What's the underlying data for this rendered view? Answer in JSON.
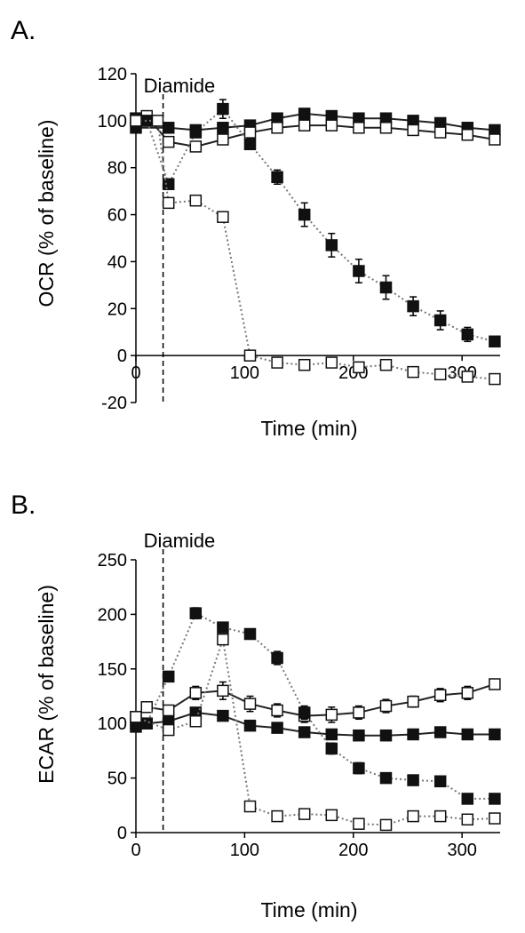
{
  "chart_data": [
    {
      "type": "line",
      "panel_label": "A.",
      "title": "",
      "xlabel": "Time (min)",
      "ylabel": "OCR (% of baseline)",
      "xlim": [
        0,
        335
      ],
      "ylim": [
        -20,
        120
      ],
      "x_ticks": [
        "0",
        "100",
        "200",
        "300"
      ],
      "x_tick_values": [
        0,
        100,
        200,
        300
      ],
      "y_ticks": [
        "-20",
        "0",
        "20",
        "40",
        "60",
        "80",
        "100",
        "120"
      ],
      "y_tick_values": [
        -20,
        0,
        20,
        40,
        60,
        80,
        100,
        120
      ],
      "annotation": {
        "text": "Diamide",
        "x": 25
      },
      "grid": false,
      "series": [
        {
          "marker": "filled",
          "line": "solid",
          "x": [
            0,
            30,
            55,
            80,
            105,
            130,
            155,
            180,
            205,
            230,
            255,
            280,
            305,
            330
          ],
          "y": [
            97,
            97,
            96,
            97,
            98,
            101,
            103,
            102,
            101,
            101,
            100,
            99,
            97,
            96
          ],
          "err": [
            0,
            0,
            0,
            0,
            0,
            0,
            0,
            0,
            0,
            0,
            0,
            0,
            0,
            0
          ]
        },
        {
          "marker": "open",
          "line": "solid",
          "x": [
            0,
            10,
            30,
            55,
            80,
            105,
            130,
            155,
            180,
            205,
            230,
            255,
            280,
            305,
            330
          ],
          "y": [
            101,
            102,
            91,
            89,
            92,
            95,
            97,
            98,
            98,
            97,
            97,
            96,
            95,
            94,
            92
          ],
          "err": [
            0,
            0,
            0,
            0,
            0,
            0,
            0,
            0,
            0,
            0,
            0,
            0,
            0,
            0,
            0
          ]
        },
        {
          "marker": "filled",
          "line": "dotted",
          "x": [
            0,
            10,
            30,
            55,
            80,
            105,
            130,
            155,
            180,
            205,
            230,
            255,
            280,
            305,
            330
          ],
          "y": [
            101,
            100,
            73,
            95,
            105,
            90,
            76,
            60,
            47,
            36,
            29,
            21,
            15,
            9,
            6
          ],
          "err": [
            0,
            0,
            2,
            2,
            4,
            2,
            3,
            5,
            5,
            5,
            5,
            4,
            4,
            3,
            2
          ]
        },
        {
          "marker": "open",
          "line": "dotted",
          "x": [
            0,
            20,
            30,
            55,
            80,
            105,
            130,
            155,
            180,
            205,
            230,
            255,
            280,
            305,
            330
          ],
          "y": [
            100,
            100,
            65,
            66,
            59,
            0,
            -3,
            -4,
            -3,
            -5,
            -4,
            -7,
            -8,
            -9,
            -10
          ],
          "err": [
            0,
            0,
            0,
            0,
            0,
            0,
            0,
            0,
            0,
            0,
            0,
            0,
            0,
            0,
            0
          ]
        }
      ]
    },
    {
      "type": "line",
      "panel_label": "B.",
      "title": "",
      "xlabel": "Time (min)",
      "ylabel": "ECAR (% of baseline)",
      "xlim": [
        0,
        335
      ],
      "ylim": [
        0,
        250
      ],
      "x_ticks": [
        "0",
        "100",
        "200",
        "300"
      ],
      "x_tick_values": [
        0,
        100,
        200,
        300
      ],
      "y_ticks": [
        "0",
        "50",
        "100",
        "150",
        "200",
        "250"
      ],
      "y_tick_values": [
        0,
        50,
        100,
        150,
        200,
        250
      ],
      "annotation": {
        "text": "Diamide",
        "x": 25
      },
      "grid": false,
      "series": [
        {
          "marker": "filled",
          "line": "solid",
          "x": [
            0,
            10,
            30,
            55,
            80,
            105,
            130,
            155,
            180,
            205,
            230,
            255,
            280,
            305,
            330
          ],
          "y": [
            97,
            100,
            102,
            110,
            107,
            98,
            96,
            92,
            90,
            89,
            89,
            90,
            92,
            90,
            90
          ],
          "err": [
            0,
            0,
            0,
            0,
            0,
            0,
            0,
            0,
            0,
            0,
            0,
            0,
            0,
            0,
            0
          ]
        },
        {
          "marker": "open",
          "line": "solid",
          "x": [
            0,
            10,
            30,
            55,
            80,
            105,
            130,
            155,
            180,
            205,
            230,
            255,
            280,
            305,
            330
          ],
          "y": [
            106,
            115,
            112,
            128,
            130,
            118,
            112,
            107,
            108,
            110,
            116,
            120,
            126,
            128,
            136
          ],
          "err": [
            0,
            0,
            0,
            6,
            8,
            7,
            6,
            6,
            7,
            6,
            6,
            5,
            6,
            6,
            4
          ]
        },
        {
          "marker": "filled",
          "line": "dotted",
          "x": [
            0,
            10,
            30,
            55,
            80,
            105,
            130,
            155,
            180,
            205,
            230,
            255,
            280,
            305,
            330
          ],
          "y": [
            100,
            100,
            143,
            201,
            188,
            182,
            160,
            110,
            77,
            59,
            50,
            48,
            47,
            31,
            31
          ],
          "err": [
            0,
            0,
            0,
            5,
            4,
            3,
            6,
            6,
            5,
            5,
            4,
            4,
            3,
            3,
            3
          ]
        },
        {
          "marker": "open",
          "line": "dotted",
          "x": [
            0,
            30,
            55,
            80,
            105,
            130,
            155,
            180,
            205,
            230,
            255,
            280,
            305,
            330
          ],
          "y": [
            106,
            94,
            102,
            177,
            24,
            15,
            17,
            16,
            8,
            7,
            15,
            15,
            12,
            13
          ],
          "err": [
            0,
            0,
            0,
            4,
            0,
            0,
            0,
            0,
            0,
            0,
            0,
            0,
            0,
            0
          ]
        }
      ]
    }
  ]
}
